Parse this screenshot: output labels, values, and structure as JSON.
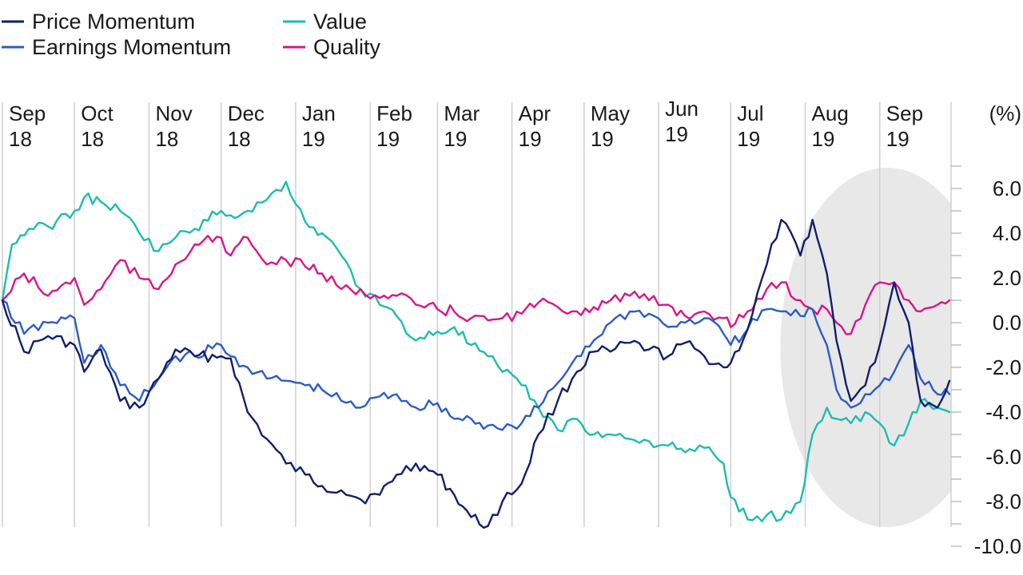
{
  "chart_data": {
    "type": "line",
    "unit_label": "(%)",
    "ylim": [
      -10,
      6
    ],
    "yticks": [
      "6.0",
      "4.0",
      "2.0",
      "0.0",
      "-2.0",
      "-4.0",
      "-6.0",
      "-8.0",
      "-10.0"
    ],
    "ytick_values": [
      6,
      4,
      2,
      0,
      -2,
      -4,
      -6,
      -8,
      -10
    ],
    "months": [
      {
        "m": "Sep",
        "y": "18"
      },
      {
        "m": "Oct",
        "y": "18"
      },
      {
        "m": "Nov",
        "y": "18"
      },
      {
        "m": "Dec",
        "y": "18"
      },
      {
        "m": "Jan",
        "y": "19"
      },
      {
        "m": "Feb",
        "y": "19"
      },
      {
        "m": "Mar",
        "y": "19"
      },
      {
        "m": "Apr",
        "y": "19"
      },
      {
        "m": "May",
        "y": "19"
      },
      {
        "m": "Jun",
        "y": "19"
      },
      {
        "m": "Jul",
        "y": "19"
      },
      {
        "m": "Aug",
        "y": "19"
      },
      {
        "m": "Sep",
        "y": "19"
      }
    ],
    "month_dates": [
      "2018-09-01",
      "2018-10-01",
      "2018-11-01",
      "2018-12-01",
      "2019-01-01",
      "2019-02-01",
      "2019-03-01",
      "2019-04-01",
      "2019-05-01",
      "2019-06-01",
      "2019-07-01",
      "2019-08-01",
      "2019-09-01"
    ],
    "highlight": {
      "from": "2019-07-20",
      "to": "2019-09-30"
    },
    "grid": true,
    "legend_position": "top-left",
    "series": [
      {
        "name": "Price Momentum",
        "color": "#0f1f6e",
        "x": [
          "2018-09-01",
          "2018-09-10",
          "2018-09-20",
          "2018-10-01",
          "2018-10-05",
          "2018-10-12",
          "2018-10-20",
          "2018-10-28",
          "2018-11-05",
          "2018-11-12",
          "2018-11-20",
          "2018-12-01",
          "2018-12-05",
          "2018-12-12",
          "2018-12-20",
          "2018-12-28",
          "2019-01-05",
          "2019-01-12",
          "2019-01-20",
          "2019-01-28",
          "2019-02-05",
          "2019-02-12",
          "2019-02-20",
          "2019-03-01",
          "2019-03-08",
          "2019-03-15",
          "2019-03-22",
          "2019-03-28",
          "2019-04-05",
          "2019-04-12",
          "2019-04-20",
          "2019-04-28",
          "2019-05-05",
          "2019-05-12",
          "2019-05-20",
          "2019-05-28",
          "2019-06-05",
          "2019-06-12",
          "2019-06-20",
          "2019-06-28",
          "2019-07-01",
          "2019-07-08",
          "2019-07-16",
          "2019-07-22",
          "2019-07-30",
          "2019-08-04",
          "2019-08-10",
          "2019-08-14",
          "2019-08-20",
          "2019-08-26",
          "2019-09-01",
          "2019-09-07",
          "2019-09-13",
          "2019-09-18",
          "2019-09-25",
          "2019-09-30"
        ],
        "y": [
          1.0,
          -1.3,
          -0.6,
          -1.0,
          -2.2,
          -1.2,
          -3.5,
          -3.8,
          -2.5,
          -1.2,
          -1.5,
          -1.5,
          -1.6,
          -4.0,
          -5.2,
          -6.3,
          -6.8,
          -7.3,
          -7.5,
          -7.9,
          -7.7,
          -6.8,
          -6.3,
          -6.8,
          -7.7,
          -8.7,
          -9.1,
          -8.0,
          -7.2,
          -5.0,
          -3.5,
          -2.2,
          -1.3,
          -1.3,
          -0.9,
          -1.2,
          -1.5,
          -0.9,
          -1.5,
          -2.0,
          -1.8,
          -0.3,
          2.6,
          4.6,
          3.0,
          4.6,
          2.2,
          -0.8,
          -3.5,
          -2.8,
          -1.0,
          1.8,
          0.0,
          -3.5,
          -3.8,
          -2.6
        ]
      },
      {
        "name": "Earnings Momentum",
        "color": "#2c5cc5",
        "x": [
          "2018-09-01",
          "2018-09-10",
          "2018-09-20",
          "2018-10-01",
          "2018-10-05",
          "2018-10-12",
          "2018-10-20",
          "2018-10-28",
          "2018-11-05",
          "2018-11-12",
          "2018-11-20",
          "2018-12-01",
          "2018-12-05",
          "2018-12-12",
          "2018-12-20",
          "2018-12-28",
          "2019-01-05",
          "2019-01-12",
          "2019-01-20",
          "2019-01-28",
          "2019-02-05",
          "2019-02-12",
          "2019-02-20",
          "2019-03-01",
          "2019-03-08",
          "2019-03-15",
          "2019-03-22",
          "2019-03-28",
          "2019-04-05",
          "2019-04-12",
          "2019-04-20",
          "2019-04-28",
          "2019-05-05",
          "2019-05-12",
          "2019-05-20",
          "2019-05-28",
          "2019-06-05",
          "2019-06-12",
          "2019-06-20",
          "2019-06-28",
          "2019-07-01",
          "2019-07-08",
          "2019-07-16",
          "2019-07-22",
          "2019-07-30",
          "2019-08-04",
          "2019-08-10",
          "2019-08-14",
          "2019-08-20",
          "2019-08-26",
          "2019-09-01",
          "2019-09-07",
          "2019-09-13",
          "2019-09-18",
          "2019-09-25",
          "2019-09-30"
        ],
        "y": [
          1.0,
          -0.5,
          0.0,
          0.2,
          -1.8,
          -1.0,
          -2.8,
          -3.5,
          -2.5,
          -1.5,
          -1.5,
          -1.0,
          -1.5,
          -2.0,
          -2.5,
          -2.6,
          -2.8,
          -3.0,
          -3.5,
          -3.8,
          -3.3,
          -3.2,
          -3.8,
          -3.6,
          -4.3,
          -4.3,
          -4.6,
          -4.8,
          -4.5,
          -3.8,
          -2.7,
          -1.5,
          -0.8,
          0.0,
          0.5,
          0.4,
          -0.2,
          0.0,
          0.2,
          -0.5,
          -1.0,
          -0.3,
          0.6,
          0.5,
          0.3,
          0.6,
          -1.0,
          -3.0,
          -3.8,
          -3.2,
          -2.8,
          -2.2,
          -1.0,
          -2.5,
          -3.2,
          -3.2
        ]
      },
      {
        "name": "Value",
        "color": "#1cbcb0",
        "x": [
          "2018-09-01",
          "2018-09-05",
          "2018-09-12",
          "2018-09-20",
          "2018-10-01",
          "2018-10-05",
          "2018-10-12",
          "2018-10-20",
          "2018-10-28",
          "2018-11-05",
          "2018-11-12",
          "2018-11-20",
          "2018-12-01",
          "2018-12-05",
          "2018-12-12",
          "2018-12-20",
          "2018-12-28",
          "2019-01-05",
          "2019-01-12",
          "2019-01-20",
          "2019-01-28",
          "2019-02-05",
          "2019-02-12",
          "2019-02-20",
          "2019-03-01",
          "2019-03-08",
          "2019-03-15",
          "2019-03-22",
          "2019-03-28",
          "2019-04-05",
          "2019-04-12",
          "2019-04-20",
          "2019-04-28",
          "2019-05-05",
          "2019-05-12",
          "2019-05-20",
          "2019-05-28",
          "2019-06-05",
          "2019-06-12",
          "2019-06-20",
          "2019-06-28",
          "2019-07-01",
          "2019-07-08",
          "2019-07-16",
          "2019-07-22",
          "2019-07-30",
          "2019-08-04",
          "2019-08-10",
          "2019-08-14",
          "2019-08-20",
          "2019-08-26",
          "2019-09-01",
          "2019-09-07",
          "2019-09-13",
          "2019-09-18",
          "2019-09-25",
          "2019-09-30"
        ],
        "y": [
          1.0,
          3.5,
          4.2,
          4.3,
          5.0,
          5.6,
          5.4,
          5.0,
          4.0,
          3.2,
          3.8,
          4.2,
          5.0,
          4.8,
          5.0,
          5.5,
          6.3,
          4.5,
          4.0,
          3.0,
          1.5,
          0.8,
          0.3,
          -0.8,
          -0.4,
          -0.2,
          -1.0,
          -1.5,
          -2.2,
          -2.8,
          -3.8,
          -4.8,
          -4.3,
          -5.0,
          -5.0,
          -5.2,
          -5.3,
          -5.5,
          -5.8,
          -5.6,
          -6.3,
          -7.8,
          -8.8,
          -8.6,
          -8.8,
          -8.0,
          -5.0,
          -3.8,
          -4.3,
          -4.5,
          -4.0,
          -4.5,
          -5.5,
          -4.5,
          -3.5,
          -3.8,
          -4.0
        ]
      },
      {
        "name": "Quality",
        "color": "#d6168c",
        "x": [
          "2018-09-01",
          "2018-09-10",
          "2018-09-20",
          "2018-10-01",
          "2018-10-05",
          "2018-10-12",
          "2018-10-20",
          "2018-10-28",
          "2018-11-05",
          "2018-11-12",
          "2018-11-20",
          "2018-12-01",
          "2018-12-05",
          "2018-12-12",
          "2018-12-20",
          "2018-12-28",
          "2019-01-05",
          "2019-01-12",
          "2019-01-20",
          "2019-01-28",
          "2019-02-05",
          "2019-02-12",
          "2019-02-20",
          "2019-03-01",
          "2019-03-08",
          "2019-03-15",
          "2019-03-22",
          "2019-03-28",
          "2019-04-05",
          "2019-04-12",
          "2019-04-20",
          "2019-04-28",
          "2019-05-05",
          "2019-05-12",
          "2019-05-20",
          "2019-05-28",
          "2019-06-05",
          "2019-06-12",
          "2019-06-20",
          "2019-06-28",
          "2019-07-01",
          "2019-07-08",
          "2019-07-16",
          "2019-07-22",
          "2019-07-30",
          "2019-08-04",
          "2019-08-10",
          "2019-08-14",
          "2019-08-20",
          "2019-08-26",
          "2019-09-01",
          "2019-09-07",
          "2019-09-13",
          "2019-09-18",
          "2019-09-25",
          "2019-09-30"
        ],
        "y": [
          1.0,
          2.2,
          1.2,
          2.0,
          0.8,
          1.5,
          2.8,
          2.0,
          1.5,
          2.6,
          3.5,
          3.8,
          3.0,
          3.8,
          2.6,
          2.8,
          2.5,
          2.2,
          1.5,
          1.5,
          1.1,
          1.2,
          0.8,
          0.6,
          0.5,
          0.2,
          0.1,
          0.2,
          0.4,
          0.9,
          0.7,
          0.5,
          0.7,
          1.0,
          1.2,
          1.0,
          0.8,
          0.3,
          0.5,
          0.2,
          -0.2,
          0.5,
          1.5,
          1.8,
          1.0,
          0.6,
          0.6,
          0.0,
          -0.5,
          0.8,
          1.8,
          1.8,
          1.0,
          0.5,
          0.8,
          1.0
        ]
      }
    ]
  }
}
